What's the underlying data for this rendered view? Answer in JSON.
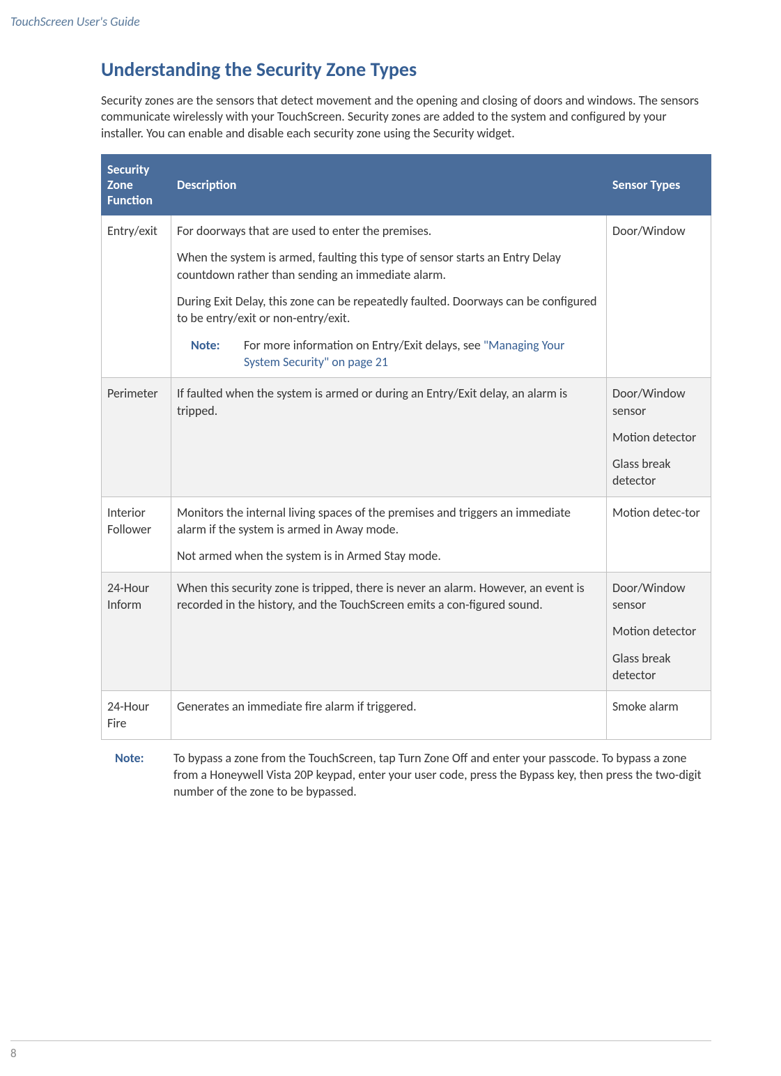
{
  "doc_header": "TouchScreen User's Guide",
  "page_title": "Understanding the Security Zone Types",
  "intro": "Security zones are the sensors that detect movement and the opening and closing of doors and windows. The sensors communicate wirelessly with your TouchScreen. Security zones are added to the system and configured by your installer. You can enable and disable each security zone using the Security widget.",
  "table": {
    "headers": {
      "func": "Security Zone Function",
      "desc": "Description",
      "sensor": "Sensor Types"
    },
    "rows": [
      {
        "alt": false,
        "func": "Entry/exit",
        "desc_paras": [
          "For doorways that are used to enter the premises.",
          "When the system is armed, faulting this type of sensor starts an Entry Delay countdown rather than sending an immediate alarm.",
          "During Exit Delay, this zone can be repeatedly faulted. Doorways can be configured to be entry/exit or non-entry/exit."
        ],
        "note_label": "Note:",
        "note_pre": "For more information on Entry/Exit delays, see ",
        "note_link": "\"Managing Your System Security\" on page 21",
        "sensors": [
          "Door/Window"
        ]
      },
      {
        "alt": true,
        "func": "Perimeter",
        "desc_paras": [
          "If faulted when the system is armed or during an Entry/Exit delay, an alarm is tripped."
        ],
        "sensors": [
          "Door/Window sensor",
          "Motion detector",
          "Glass break detector"
        ]
      },
      {
        "alt": false,
        "func": "Interior Follower",
        "desc_paras": [
          "Monitors the internal living spaces of the premises and triggers an immediate alarm if the system is armed in Away mode.",
          "Not armed when the system is in Armed Stay mode."
        ],
        "sensors": [
          "Motion detec-tor"
        ]
      },
      {
        "alt": true,
        "func": "24-Hour Inform",
        "desc_paras": [
          "When this security zone is tripped, there is never an alarm. However, an event is recorded in the history, and the TouchScreen emits a con-figured sound."
        ],
        "sensors": [
          "Door/Window sensor",
          "Motion detector",
          "Glass break detector"
        ]
      },
      {
        "alt": false,
        "func": "24-Hour Fire",
        "desc_paras": [
          "Generates an immediate fire alarm if triggered."
        ],
        "sensors": [
          "Smoke alarm"
        ]
      }
    ]
  },
  "footer_note": {
    "label": "Note:",
    "text": "To bypass a zone from the TouchScreen, tap Turn Zone Off and enter your passcode. To bypass a zone from a Honeywell Vista 20P keypad, enter your user code, press the Bypass key, then press the two-digit number of the zone to be bypassed."
  },
  "page_number": "8",
  "colors": {
    "heading": "#355e93",
    "header_bg": "#4a6d9b",
    "border": "#bfbfbf",
    "alt_row": "#f2f2f2",
    "doc_header": "#5b7a9b",
    "page_num": "#888888"
  }
}
